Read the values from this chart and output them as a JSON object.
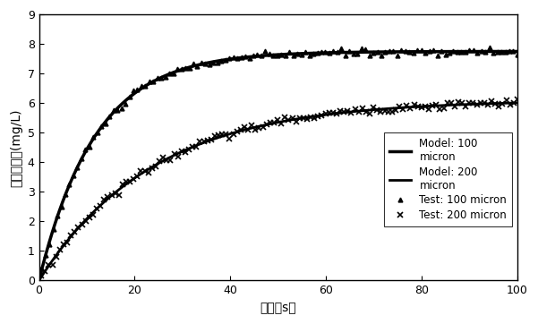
{
  "title": "",
  "xlabel": "时间（s）",
  "ylabel": "溶解氧浓度(mg/L)",
  "xlim": [
    0,
    100
  ],
  "ylim": [
    0,
    9
  ],
  "xticks": [
    0,
    20,
    40,
    60,
    80,
    100
  ],
  "yticks": [
    0,
    1,
    2,
    3,
    4,
    5,
    6,
    7,
    8,
    9
  ],
  "model_100_params": {
    "C_sat": 7.75,
    "k": 0.085
  },
  "model_200_params": {
    "C_sat": 6.1,
    "k": 0.042
  },
  "legend_labels": [
    "Model: 100\nmicron",
    "Model: 200\nmicron",
    "Test: 100 micron",
    "Test: 200 micron"
  ],
  "line_color": "#000000",
  "background_color": "#ffffff",
  "fontsize_label": 10,
  "fontsize_tick": 9,
  "fontsize_legend": 8.5
}
